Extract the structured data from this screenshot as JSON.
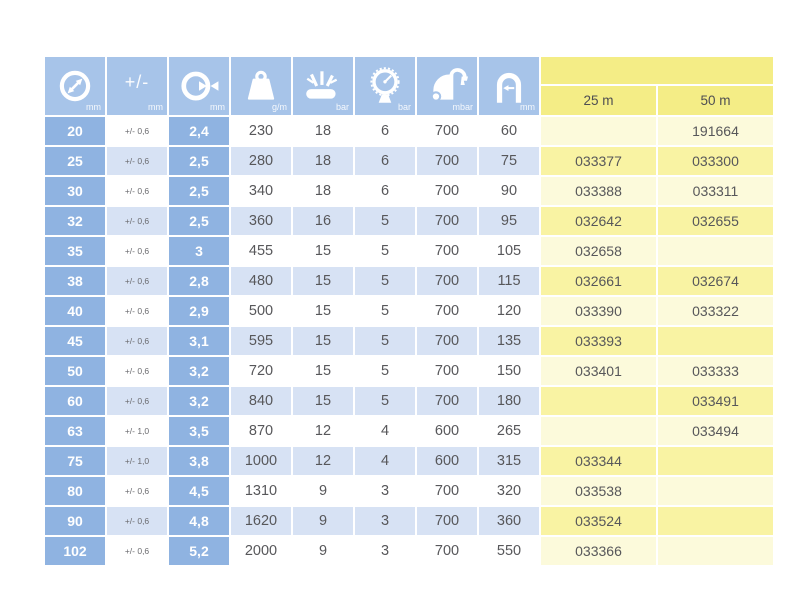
{
  "colors": {
    "blue-header": "#a7c4e9",
    "blue-mid": "#8fb3e1",
    "blue-light": "#d7e2f4",
    "yellow-header": "#f4ed86",
    "yellow-strong": "#f9f3a3",
    "yellow-pale": "#fcfadb"
  },
  "header": {
    "columns": [
      {
        "icon": "inner-diameter-icon",
        "unit": "mm"
      },
      {
        "icon": "tolerance-icon",
        "label": "+/-",
        "unit": "mm"
      },
      {
        "icon": "wall-thickness-icon",
        "unit": "mm"
      },
      {
        "icon": "weight-icon",
        "unit": "g/m"
      },
      {
        "icon": "burst-pressure-icon",
        "unit": "bar"
      },
      {
        "icon": "working-pressure-icon",
        "unit": "bar"
      },
      {
        "icon": "vacuum-icon",
        "unit": "mbar"
      },
      {
        "icon": "bend-radius-icon",
        "unit": "mm"
      }
    ],
    "order_columns": [
      "25 m",
      "50 m"
    ]
  },
  "rows": [
    {
      "id": "20",
      "tol": "+/- 0,6",
      "wall": "2,4",
      "weight": "230",
      "burst": "18",
      "work": "6",
      "vacuum": "700",
      "bend": "60",
      "m25": "",
      "m50": "191664"
    },
    {
      "id": "25",
      "tol": "+/- 0,6",
      "wall": "2,5",
      "weight": "280",
      "burst": "18",
      "work": "6",
      "vacuum": "700",
      "bend": "75",
      "m25": "033377",
      "m50": "033300"
    },
    {
      "id": "30",
      "tol": "+/- 0,6",
      "wall": "2,5",
      "weight": "340",
      "burst": "18",
      "work": "6",
      "vacuum": "700",
      "bend": "90",
      "m25": "033388",
      "m50": "033311"
    },
    {
      "id": "32",
      "tol": "+/- 0,6",
      "wall": "2,5",
      "weight": "360",
      "burst": "16",
      "work": "5",
      "vacuum": "700",
      "bend": "95",
      "m25": "032642",
      "m50": "032655"
    },
    {
      "id": "35",
      "tol": "+/- 0,6",
      "wall": "3",
      "weight": "455",
      "burst": "15",
      "work": "5",
      "vacuum": "700",
      "bend": "105",
      "m25": "032658",
      "m50": ""
    },
    {
      "id": "38",
      "tol": "+/- 0,6",
      "wall": "2,8",
      "weight": "480",
      "burst": "15",
      "work": "5",
      "vacuum": "700",
      "bend": "115",
      "m25": "032661",
      "m50": "032674"
    },
    {
      "id": "40",
      "tol": "+/- 0,6",
      "wall": "2,9",
      "weight": "500",
      "burst": "15",
      "work": "5",
      "vacuum": "700",
      "bend": "120",
      "m25": "033390",
      "m50": "033322"
    },
    {
      "id": "45",
      "tol": "+/- 0,6",
      "wall": "3,1",
      "weight": "595",
      "burst": "15",
      "work": "5",
      "vacuum": "700",
      "bend": "135",
      "m25": "033393",
      "m50": ""
    },
    {
      "id": "50",
      "tol": "+/- 0,6",
      "wall": "3,2",
      "weight": "720",
      "burst": "15",
      "work": "5",
      "vacuum": "700",
      "bend": "150",
      "m25": "033401",
      "m50": "033333"
    },
    {
      "id": "60",
      "tol": "+/- 0,6",
      "wall": "3,2",
      "weight": "840",
      "burst": "15",
      "work": "5",
      "vacuum": "700",
      "bend": "180",
      "m25": "",
      "m50": "033491"
    },
    {
      "id": "63",
      "tol": "+/- 1,0",
      "wall": "3,5",
      "weight": "870",
      "burst": "12",
      "work": "4",
      "vacuum": "600",
      "bend": "265",
      "m25": "",
      "m50": "033494"
    },
    {
      "id": "75",
      "tol": "+/- 1,0",
      "wall": "3,8",
      "weight": "1000",
      "burst": "12",
      "work": "4",
      "vacuum": "600",
      "bend": "315",
      "m25": "033344",
      "m50": ""
    },
    {
      "id": "80",
      "tol": "+/- 0,6",
      "wall": "4,5",
      "weight": "1310",
      "burst": "9",
      "work": "3",
      "vacuum": "700",
      "bend": "320",
      "m25": "033538",
      "m50": ""
    },
    {
      "id": "90",
      "tol": "+/- 0,6",
      "wall": "4,8",
      "weight": "1620",
      "burst": "9",
      "work": "3",
      "vacuum": "700",
      "bend": "360",
      "m25": "033524",
      "m50": ""
    },
    {
      "id": "102",
      "tol": "+/- 0,6",
      "wall": "5,2",
      "weight": "2000",
      "burst": "9",
      "work": "3",
      "vacuum": "700",
      "bend": "550",
      "m25": "033366",
      "m50": ""
    }
  ]
}
